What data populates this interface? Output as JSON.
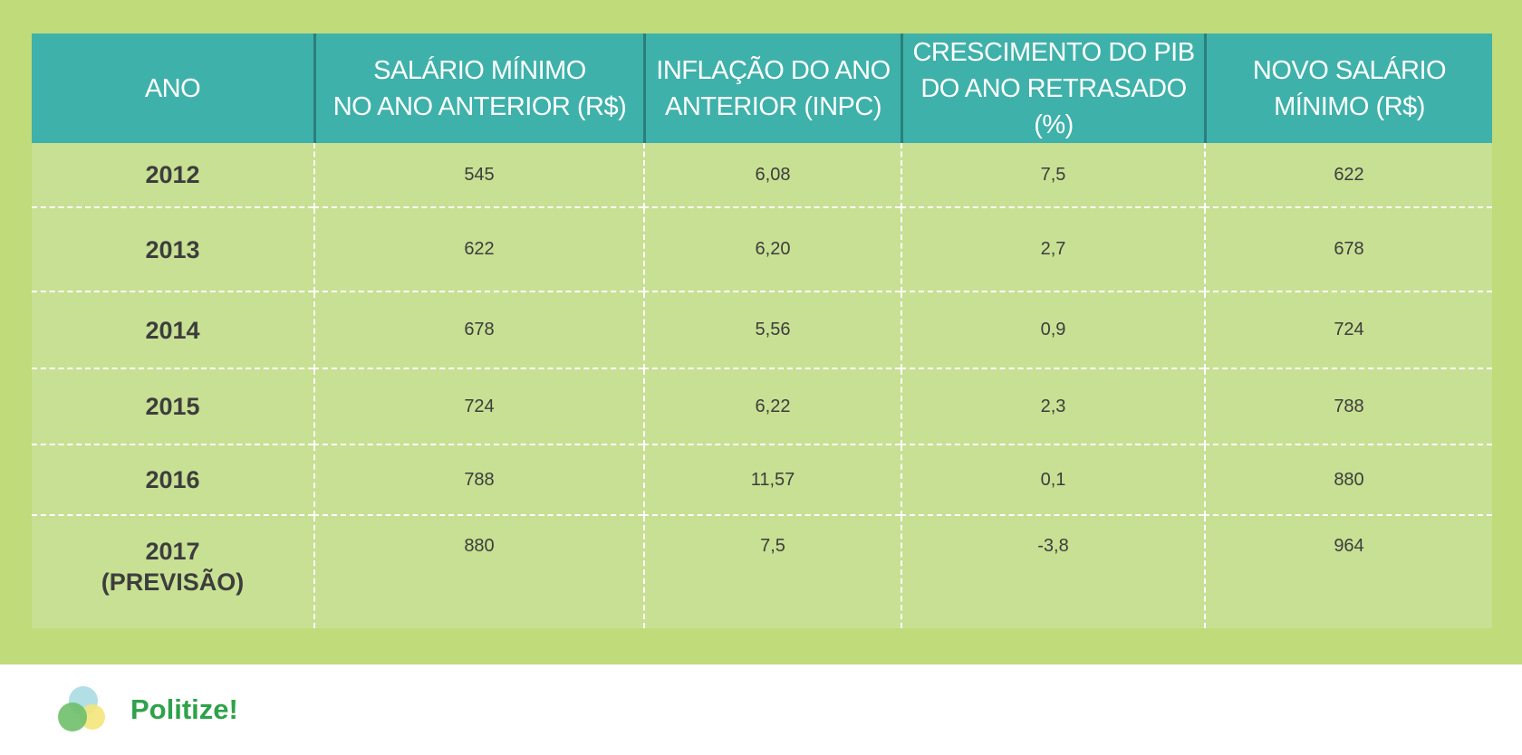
{
  "table": {
    "header": [
      [
        "ANO"
      ],
      [
        "SALÁRIO MÍNIMO",
        "NO ANO ANTERIOR (R$)"
      ],
      [
        "INFLAÇÃO DO ANO",
        "ANTERIOR (INPC)"
      ],
      [
        "CRESCIMENTO DO PIB",
        "DO ANO RETRASADO (%)"
      ],
      [
        "NOVO SALÁRIO",
        "MÍNIMO (R$)"
      ]
    ],
    "rows": [
      {
        "year": [
          "2012"
        ],
        "values": [
          "545",
          "6,08",
          "7,5",
          "622"
        ]
      },
      {
        "year": [
          "2013"
        ],
        "values": [
          "622",
          "6,20",
          "2,7",
          "678"
        ]
      },
      {
        "year": [
          "2014"
        ],
        "values": [
          "678",
          "5,56",
          "0,9",
          "724"
        ]
      },
      {
        "year": [
          "2015"
        ],
        "values": [
          "724",
          "6,22",
          "2,3",
          "788"
        ]
      },
      {
        "year": [
          "2016"
        ],
        "values": [
          "788",
          "11,57",
          "0,1",
          "880"
        ]
      },
      {
        "year": [
          "2017",
          "(PREVISÃO)"
        ],
        "values": [
          "880",
          "7,5",
          "-3,8",
          "964"
        ]
      }
    ]
  },
  "footer": {
    "brand": "Politize!"
  }
}
